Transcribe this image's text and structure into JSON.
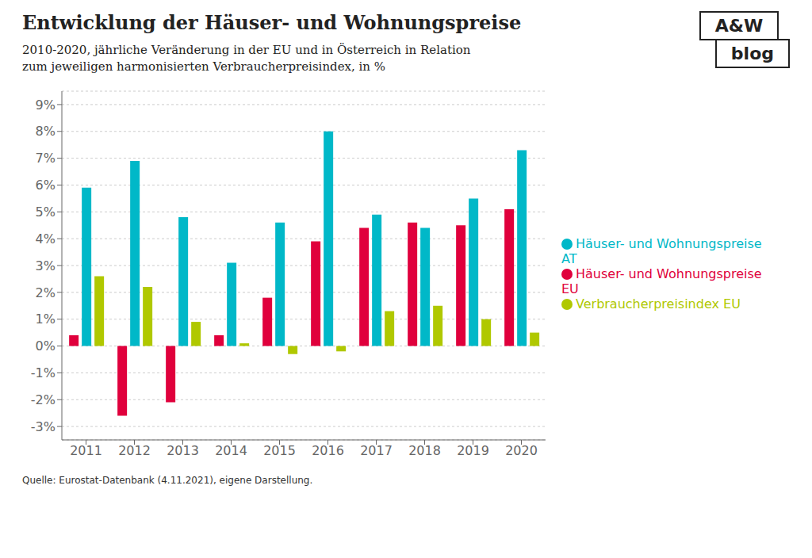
{
  "chart_data": {
    "type": "bar",
    "title": "Entwicklung der Häuser- und Wohnungspreise",
    "subtitle": [
      "2010-2020, jährliche Veränderung in der EU und in Österreich in Relation",
      "zum jeweiligen harmonisierten Verbraucherpreisindex, in %"
    ],
    "annotations": [
      "Quelle: Eurostat-Datenbank (4.11.2021), eigene Darstellung.",
      "A&W",
      "blog"
    ],
    "categories": [
      "2011",
      "2012",
      "2013",
      "2014",
      "2015",
      "2016",
      "2017",
      "2018",
      "2019",
      "2020"
    ],
    "series": [
      {
        "name": "Häuser- und Wohnungspreise EU",
        "color": "#e0003c",
        "values": [
          0.4,
          -2.6,
          -2.1,
          0.4,
          1.8,
          3.9,
          4.4,
          4.6,
          4.5,
          5.1
        ]
      },
      {
        "name": "Häuser- und Wohnungspreise AT",
        "color": "#00b8c8",
        "values": [
          5.9,
          6.9,
          4.8,
          3.1,
          4.6,
          8.0,
          4.9,
          4.4,
          5.5,
          7.3
        ]
      },
      {
        "name": "Verbraucherpreisindex EU",
        "color": "#b0c800",
        "values": [
          2.6,
          2.2,
          0.9,
          0.1,
          -0.3,
          -0.2,
          1.3,
          1.5,
          1.0,
          0.5
        ]
      }
    ],
    "ylim": [
      -3.5,
      9.5
    ],
    "yticks": [
      {
        "value": -3,
        "label": "-3%"
      },
      {
        "value": -2,
        "label": "-2%"
      },
      {
        "value": -1,
        "label": "-1%"
      },
      {
        "value": 0,
        "label": "0%"
      },
      {
        "value": 1,
        "label": "1%"
      },
      {
        "value": 2,
        "label": "2%"
      },
      {
        "value": 3,
        "label": "3%"
      },
      {
        "value": 4,
        "label": "4%"
      },
      {
        "value": 5,
        "label": "5%"
      },
      {
        "value": 6,
        "label": "6%"
      },
      {
        "value": 7,
        "label": "7%"
      },
      {
        "value": 8,
        "label": "8%"
      },
      {
        "value": 9,
        "label": "9%"
      }
    ],
    "grid": true,
    "legend": "right"
  }
}
